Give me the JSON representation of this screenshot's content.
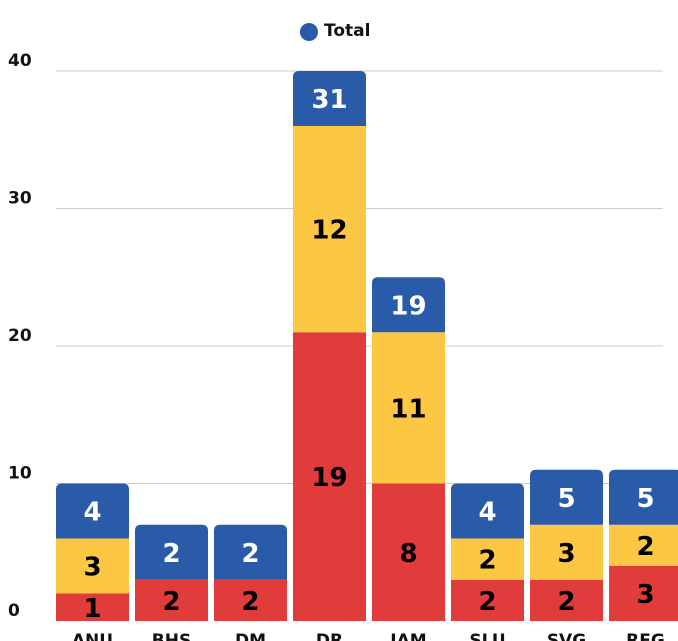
{
  "chart_data": {
    "type": "stacked_bar",
    "categories": [
      "ANU",
      "BHS",
      "DM",
      "DR",
      "JAM",
      "SLU",
      "SVG",
      "REG"
    ],
    "series": [
      {
        "color": "#e03c3c",
        "values": [
          2,
          3,
          3,
          21,
          10,
          3,
          3,
          4
        ],
        "labels": [
          1,
          2,
          2,
          19,
          8,
          2,
          2,
          3
        ]
      },
      {
        "color": "#fcc843",
        "values": [
          4,
          null,
          null,
          15,
          11,
          3,
          4,
          3
        ],
        "labels": [
          3,
          null,
          null,
          12,
          11,
          2,
          3,
          2
        ]
      },
      {
        "name": "Total",
        "color": "#2a5ba8",
        "values": [
          4,
          4,
          4,
          4,
          4,
          4,
          4,
          4
        ],
        "labels": [
          4,
          2,
          2,
          31,
          19,
          4,
          5,
          5
        ]
      }
    ],
    "ylim": [
      0,
      40
    ],
    "yticks": [
      0,
      10,
      20,
      30,
      40
    ],
    "grid": true,
    "legend": "top"
  }
}
